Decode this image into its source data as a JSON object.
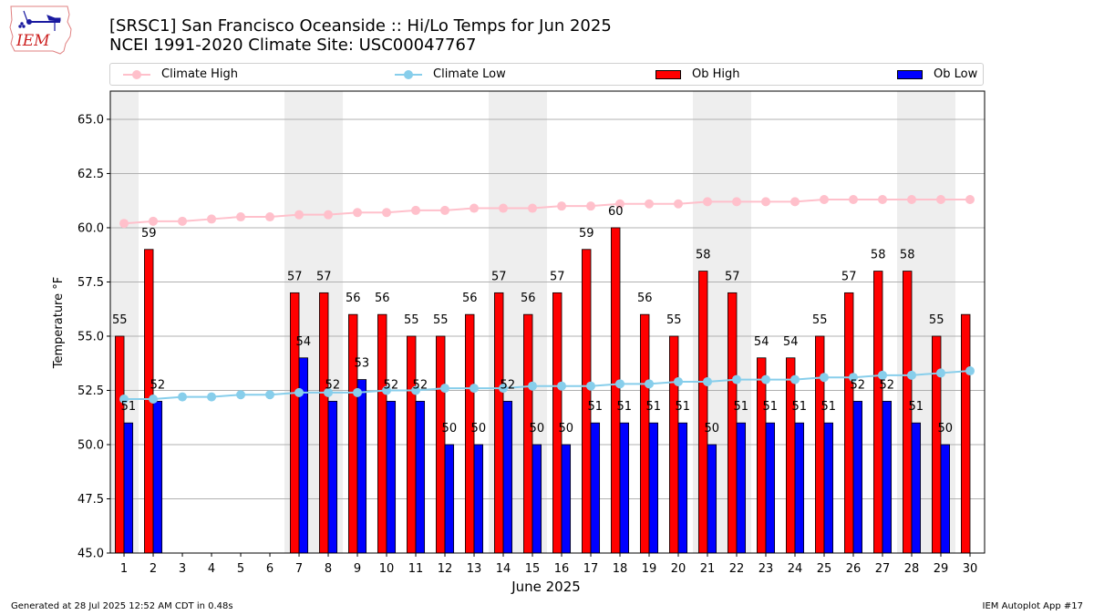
{
  "logo": {
    "text": "IEM"
  },
  "header": {
    "title_line1": "[SRSC1] San Francisco Oceanside :: Hi/Lo Temps for Jun 2025",
    "title_line2": "NCEI 1991-2020 Climate Site: USC00047767"
  },
  "legend": {
    "items": [
      {
        "label": "Climate High",
        "kind": "line",
        "color": "#ffc0cb"
      },
      {
        "label": "Climate Low",
        "kind": "line",
        "color": "#87ceeb"
      },
      {
        "label": "Ob High",
        "kind": "bar",
        "color": "#ff0000"
      },
      {
        "label": "Ob Low",
        "kind": "bar",
        "color": "#0000ff"
      }
    ]
  },
  "chart_data": {
    "type": "bar",
    "title": "[SRSC1] San Francisco Oceanside :: Hi/Lo Temps for Jun 2025",
    "subtitle": "NCEI 1991-2020 Climate Site: USC00047767",
    "xlabel": "June 2025",
    "ylabel": "Temperature °F",
    "ylim": [
      45.0,
      66.3
    ],
    "xlim": [
      0.53,
      30.5
    ],
    "yticks": [
      "45.0",
      "47.5",
      "50.0",
      "52.5",
      "55.0",
      "57.5",
      "60.0",
      "62.5",
      "65.0"
    ],
    "ytick_values": [
      45.0,
      47.5,
      50.0,
      52.5,
      55.0,
      57.5,
      60.0,
      62.5,
      65.0
    ],
    "grid": "horizontal",
    "legend_position": "top",
    "shaded_days": [
      1,
      7,
      8,
      14,
      15,
      21,
      22,
      28,
      29
    ],
    "x": [
      1,
      2,
      3,
      4,
      5,
      6,
      7,
      8,
      9,
      10,
      11,
      12,
      13,
      14,
      15,
      16,
      17,
      18,
      19,
      20,
      21,
      22,
      23,
      24,
      25,
      26,
      27,
      28,
      29,
      30
    ],
    "series": [
      {
        "name": "Ob High",
        "kind": "bar",
        "color": "#ff0000",
        "values": [
          55,
          59,
          null,
          null,
          null,
          null,
          57,
          57,
          56,
          56,
          55,
          55,
          56,
          57,
          56,
          57,
          59,
          60,
          56,
          55,
          58,
          57,
          54,
          54,
          55,
          57,
          58,
          58,
          55,
          56
        ],
        "labels": [
          "55",
          "59",
          "",
          "",
          "",
          "",
          "57",
          "57",
          "56",
          "56",
          "55",
          "55",
          "56",
          "57",
          "56",
          "57",
          "59",
          "60",
          "56",
          "55",
          "58",
          "57",
          "54",
          "54",
          "55",
          "57",
          "58",
          "58",
          "55",
          ""
        ]
      },
      {
        "name": "Ob Low",
        "kind": "bar",
        "color": "#0000ff",
        "values": [
          51,
          52,
          null,
          null,
          null,
          null,
          54,
          52,
          53,
          52,
          52,
          50,
          50,
          52,
          50,
          50,
          51,
          51,
          51,
          51,
          50,
          51,
          51,
          51,
          51,
          52,
          52,
          51,
          50,
          null
        ],
        "labels": [
          "51",
          "52",
          "",
          "",
          "",
          "",
          "54",
          "52",
          "53",
          "52",
          "52",
          "50",
          "50",
          "52",
          "50",
          "50",
          "51",
          "51",
          "51",
          "51",
          "50",
          "51",
          "51",
          "51",
          "51",
          "52",
          "52",
          "51",
          "50",
          ""
        ]
      },
      {
        "name": "Climate High",
        "kind": "line",
        "color": "#ffc0cb",
        "values": [
          60.2,
          60.3,
          60.3,
          60.4,
          60.5,
          60.5,
          60.6,
          60.6,
          60.7,
          60.7,
          60.8,
          60.8,
          60.9,
          60.9,
          60.9,
          61.0,
          61.0,
          61.1,
          61.1,
          61.1,
          61.2,
          61.2,
          61.2,
          61.2,
          61.3,
          61.3,
          61.3,
          61.3,
          61.3,
          61.3
        ]
      },
      {
        "name": "Climate Low",
        "kind": "line",
        "color": "#87ceeb",
        "values": [
          52.1,
          52.1,
          52.2,
          52.2,
          52.3,
          52.3,
          52.4,
          52.4,
          52.4,
          52.5,
          52.5,
          52.6,
          52.6,
          52.6,
          52.7,
          52.7,
          52.7,
          52.8,
          52.8,
          52.9,
          52.9,
          53.0,
          53.0,
          53.0,
          53.1,
          53.1,
          53.2,
          53.2,
          53.3,
          53.4
        ]
      }
    ]
  },
  "footer": {
    "generated": "Generated at 28 Jul 2025 12:52 AM CDT in 0.48s",
    "app": "IEM Autoplot App #17"
  }
}
